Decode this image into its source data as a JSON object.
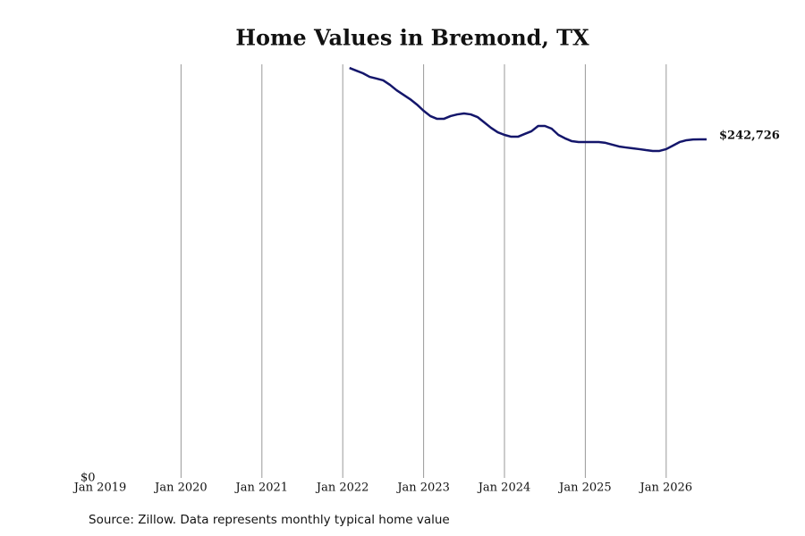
{
  "chart_data": {
    "type": "line",
    "title": "Home Values in Bremond, TX",
    "source": "Source: Zillow. Data represents monthly typical home value",
    "x": [
      "2022-02",
      "2022-03",
      "2022-04",
      "2022-05",
      "2022-06",
      "2022-07",
      "2022-08",
      "2022-09",
      "2022-10",
      "2022-11",
      "2022-12",
      "2023-01",
      "2023-02",
      "2023-03",
      "2023-04",
      "2023-05",
      "2023-06",
      "2023-07",
      "2023-08",
      "2023-09",
      "2023-10",
      "2023-11",
      "2023-12",
      "2024-01",
      "2024-02",
      "2024-03",
      "2024-04",
      "2024-05",
      "2024-06",
      "2024-07",
      "2024-08",
      "2024-09",
      "2024-10",
      "2024-11",
      "2024-12",
      "2025-01",
      "2025-02",
      "2025-03",
      "2025-04",
      "2025-05",
      "2025-06",
      "2025-07",
      "2025-08",
      "2025-09",
      "2025-10",
      "2025-11",
      "2025-12",
      "2026-01",
      "2026-02",
      "2026-03",
      "2026-04",
      "2026-05",
      "2026-06",
      "2026-07"
    ],
    "series": [
      {
        "name": "Bremond, TX",
        "color": "#14166b",
        "values": [
          293900,
          292000,
          290100,
          287500,
          286300,
          285000,
          281800,
          277900,
          274700,
          271500,
          267700,
          263200,
          259400,
          257400,
          257400,
          259400,
          260600,
          261300,
          260600,
          258700,
          254900,
          251000,
          247800,
          245900,
          244600,
          244600,
          246600,
          248500,
          252300,
          252300,
          250400,
          245900,
          243400,
          241400,
          240800,
          240800,
          240800,
          240800,
          240200,
          238900,
          237600,
          236900,
          236300,
          235700,
          235000,
          234400,
          234400,
          235700,
          238200,
          240800,
          242100,
          242600,
          242700,
          242726
        ],
        "value_labels": [
          null,
          null,
          null,
          null,
          null,
          null,
          null,
          null,
          null,
          null,
          null,
          null,
          null,
          null,
          null,
          null,
          null,
          null,
          null,
          null,
          null,
          null,
          null,
          null,
          null,
          null,
          null,
          null,
          null,
          null,
          null,
          null,
          null,
          null,
          null,
          null,
          null,
          null,
          null,
          null,
          null,
          null,
          null,
          null,
          null,
          null,
          null,
          null,
          null,
          null,
          null,
          null,
          null,
          "$242,726"
        ]
      }
    ],
    "xlim": [
      "2019-01",
      "2026-07"
    ],
    "xticks": [
      {
        "value": "2019-01",
        "label": "Jan 2019"
      },
      {
        "value": "2020-01",
        "label": "Jan 2020"
      },
      {
        "value": "2021-01",
        "label": "Jan 2021"
      },
      {
        "value": "2022-01",
        "label": "Jan 2022"
      },
      {
        "value": "2023-01",
        "label": "Jan 2023"
      },
      {
        "value": "2024-01",
        "label": "Jan 2024"
      },
      {
        "value": "2025-01",
        "label": "Jan 2025"
      },
      {
        "value": "2026-01",
        "label": "Jan 2026"
      }
    ],
    "ylim": [
      0,
      296500
    ],
    "yticks": [
      {
        "value": 0,
        "label": "$0"
      }
    ],
    "grid": true
  }
}
